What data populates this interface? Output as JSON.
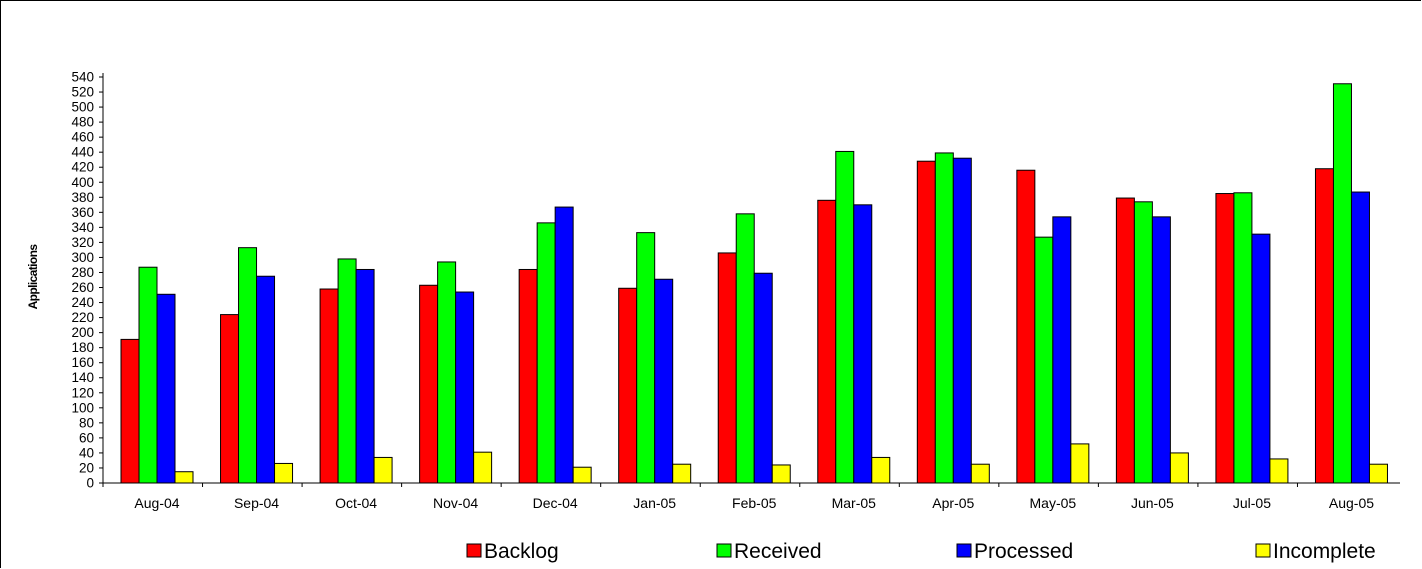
{
  "chart_data": {
    "type": "bar",
    "ylabel": "Applications",
    "ylim": [
      0,
      540
    ],
    "ytick_step": 20,
    "grid": false,
    "legend_position": "bottom",
    "categories": [
      "Aug-04",
      "Sep-04",
      "Oct-04",
      "Nov-04",
      "Dec-04",
      "Jan-05",
      "Feb-05",
      "Mar-05",
      "Apr-05",
      "May-05",
      "Jun-05",
      "Jul-05",
      "Aug-05"
    ],
    "series": [
      {
        "name": "Backlog",
        "color": "#ff0000",
        "values": [
          191,
          224,
          258,
          263,
          284,
          259,
          306,
          376,
          428,
          416,
          379,
          385,
          418
        ]
      },
      {
        "name": "Received",
        "color": "#00ff00",
        "values": [
          287,
          313,
          298,
          294,
          346,
          333,
          358,
          441,
          439,
          327,
          374,
          386,
          531
        ]
      },
      {
        "name": "Processed",
        "color": "#0000ff",
        "values": [
          251,
          275,
          284,
          254,
          367,
          271,
          279,
          370,
          432,
          354,
          354,
          331,
          387
        ]
      },
      {
        "name": "Incomplete",
        "color": "#ffff00",
        "values": [
          15,
          26,
          34,
          41,
          21,
          25,
          24,
          34,
          25,
          52,
          40,
          32,
          25
        ]
      }
    ]
  }
}
